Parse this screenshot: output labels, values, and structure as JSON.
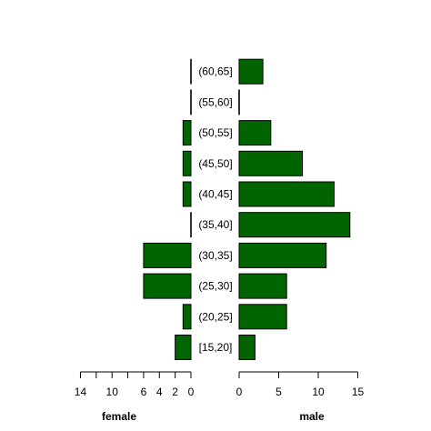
{
  "chart_data": {
    "type": "bar",
    "subtype": "population-pyramid",
    "orientation": "horizontal",
    "categories": [
      "[15,20]",
      "(20,25]",
      "(25,30]",
      "(30,35]",
      "(35,40]",
      "(40,45]",
      "(45,50]",
      "(50,55]",
      "(55,60]",
      "(60,65]"
    ],
    "series": [
      {
        "name": "female",
        "values": [
          2,
          1,
          6,
          6,
          0,
          1,
          1,
          1,
          0,
          0
        ]
      },
      {
        "name": "male",
        "values": [
          2,
          6,
          6,
          11,
          14,
          12,
          8,
          4,
          0,
          3
        ]
      }
    ],
    "bar_color": "#006400",
    "female_axis": {
      "label": "female",
      "ticks": [
        14,
        10,
        6,
        4,
        2,
        0
      ],
      "range": [
        0,
        14
      ]
    },
    "male_axis": {
      "label": "male",
      "ticks": [
        0,
        5,
        10,
        15
      ],
      "range": [
        0,
        15
      ]
    },
    "grid": false
  }
}
